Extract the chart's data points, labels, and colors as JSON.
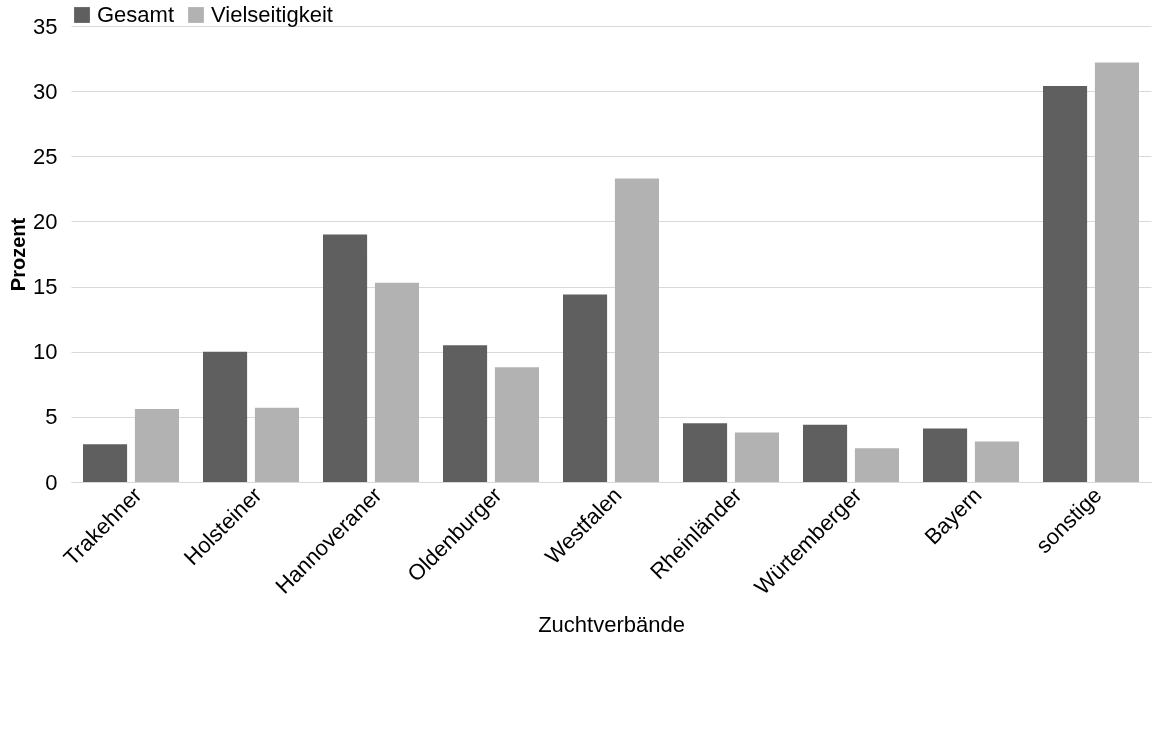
{
  "chart_data": {
    "type": "bar",
    "xlabel": "Zuchtverbände",
    "ylabel": "Prozent",
    "categories": [
      "Trakehner",
      "Holsteiner",
      "Hannoveraner",
      "Oldenburger",
      "Westfalen",
      "Rheinländer",
      "Würtemberger",
      "Bayern",
      "sonstige"
    ],
    "series": [
      {
        "name": "Gesamt",
        "color": "#5f5f5f",
        "values": [
          2.9,
          10.0,
          19.0,
          10.5,
          14.4,
          4.5,
          4.4,
          4.1,
          30.4
        ]
      },
      {
        "name": "Vielseitigkeit",
        "color": "#b2b2b2",
        "values": [
          5.6,
          5.7,
          15.3,
          8.8,
          23.3,
          3.8,
          2.6,
          3.1,
          32.2
        ]
      }
    ],
    "ylim": [
      0,
      35
    ],
    "yticks": [
      0,
      5,
      10,
      15,
      20,
      25,
      30,
      35
    ],
    "grid": "y",
    "legend": "top"
  }
}
